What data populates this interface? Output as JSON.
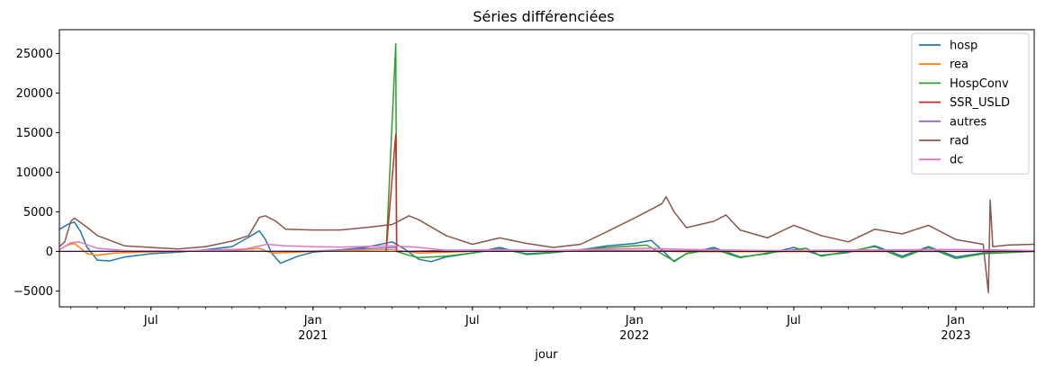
{
  "chart_data": {
    "type": "line",
    "title": "Séries différenciées",
    "xlabel": "jour",
    "ylabel": "",
    "xlim": [
      "2020-03-19",
      "2023-03-31"
    ],
    "ylim": [
      -7000,
      28000
    ],
    "yticks": [
      -5000,
      0,
      5000,
      10000,
      15000,
      20000,
      25000
    ],
    "ytick_labels": [
      "−5000",
      "0",
      "5000",
      "10000",
      "15000",
      "20000",
      "25000"
    ],
    "xticks": [
      {
        "date": "2020-07-01",
        "label": "Jul",
        "sublabel": ""
      },
      {
        "date": "2021-01-01",
        "label": "Jan",
        "sublabel": "2021"
      },
      {
        "date": "2021-07-01",
        "label": "Jul",
        "sublabel": ""
      },
      {
        "date": "2022-01-01",
        "label": "Jan",
        "sublabel": "2022"
      },
      {
        "date": "2022-07-01",
        "label": "Jul",
        "sublabel": ""
      },
      {
        "date": "2023-01-01",
        "label": "Jan",
        "sublabel": "2023"
      }
    ],
    "legend_position": "top-right",
    "grid": false,
    "series": [
      {
        "name": "hosp",
        "color": "#1f77b4",
        "points": [
          [
            "2020-03-19",
            2800
          ],
          [
            "2020-03-30",
            3500
          ],
          [
            "2020-04-05",
            3700
          ],
          [
            "2020-04-12",
            2500
          ],
          [
            "2020-04-19",
            600
          ],
          [
            "2020-05-01",
            -1100
          ],
          [
            "2020-05-15",
            -1200
          ],
          [
            "2020-06-01",
            -700
          ],
          [
            "2020-07-01",
            -300
          ],
          [
            "2020-08-01",
            -100
          ],
          [
            "2020-09-01",
            200
          ],
          [
            "2020-10-01",
            600
          ],
          [
            "2020-10-20",
            1800
          ],
          [
            "2020-11-01",
            2600
          ],
          [
            "2020-11-08",
            1500
          ],
          [
            "2020-11-15",
            -200
          ],
          [
            "2020-11-25",
            -1500
          ],
          [
            "2020-12-15",
            -600
          ],
          [
            "2021-01-01",
            -100
          ],
          [
            "2021-02-01",
            200
          ],
          [
            "2021-03-01",
            500
          ],
          [
            "2021-04-01",
            1200
          ],
          [
            "2021-04-15",
            300
          ],
          [
            "2021-05-01",
            -1000
          ],
          [
            "2021-05-15",
            -1300
          ],
          [
            "2021-06-01",
            -700
          ],
          [
            "2021-07-01",
            -200
          ],
          [
            "2021-08-01",
            500
          ],
          [
            "2021-09-01",
            -400
          ],
          [
            "2021-10-01",
            -150
          ],
          [
            "2021-11-01",
            200
          ],
          [
            "2021-12-01",
            700
          ],
          [
            "2022-01-01",
            1000
          ],
          [
            "2022-01-20",
            1400
          ],
          [
            "2022-02-01",
            200
          ],
          [
            "2022-02-15",
            -1300
          ],
          [
            "2022-03-01",
            -300
          ],
          [
            "2022-04-01",
            500
          ],
          [
            "2022-05-01",
            -700
          ],
          [
            "2022-06-01",
            -300
          ],
          [
            "2022-07-01",
            500
          ],
          [
            "2022-08-01",
            -500
          ],
          [
            "2022-09-01",
            -150
          ],
          [
            "2022-10-01",
            700
          ],
          [
            "2022-11-01",
            -600
          ],
          [
            "2022-12-01",
            600
          ],
          [
            "2023-01-01",
            -700
          ],
          [
            "2023-02-01",
            -200
          ],
          [
            "2023-03-01",
            100
          ],
          [
            "2023-03-31",
            50
          ]
        ]
      },
      {
        "name": "rea",
        "color": "#ff7f0e",
        "points": [
          [
            "2020-03-19",
            200
          ],
          [
            "2020-03-28",
            800
          ],
          [
            "2020-04-05",
            1000
          ],
          [
            "2020-04-12",
            400
          ],
          [
            "2020-04-20",
            -300
          ],
          [
            "2020-05-01",
            -500
          ],
          [
            "2020-05-20",
            -200
          ],
          [
            "2020-06-15",
            -100
          ],
          [
            "2020-08-01",
            0
          ],
          [
            "2020-10-01",
            100
          ],
          [
            "2020-11-01",
            400
          ],
          [
            "2020-11-15",
            -200
          ],
          [
            "2020-12-01",
            -150
          ],
          [
            "2021-01-01",
            0
          ],
          [
            "2021-04-01",
            200
          ],
          [
            "2021-05-01",
            -200
          ],
          [
            "2021-07-01",
            0
          ],
          [
            "2022-01-01",
            100
          ],
          [
            "2022-03-01",
            -50
          ],
          [
            "2023-03-31",
            0
          ]
        ]
      },
      {
        "name": "HospConv",
        "color": "#2ca02c",
        "points": [
          [
            "2021-03-25",
            0
          ],
          [
            "2021-04-05",
            26200
          ],
          [
            "2021-04-06",
            0
          ],
          [
            "2021-04-20",
            -500
          ],
          [
            "2021-05-01",
            -800
          ],
          [
            "2021-06-01",
            -600
          ],
          [
            "2021-07-01",
            -200
          ],
          [
            "2021-08-01",
            300
          ],
          [
            "2021-09-01",
            -300
          ],
          [
            "2021-10-01",
            -100
          ],
          [
            "2021-12-01",
            500
          ],
          [
            "2022-01-15",
            800
          ],
          [
            "2022-02-15",
            -1200
          ],
          [
            "2022-03-01",
            -300
          ],
          [
            "2022-04-01",
            300
          ],
          [
            "2022-05-01",
            -800
          ],
          [
            "2022-06-01",
            -200
          ],
          [
            "2022-07-15",
            400
          ],
          [
            "2022-08-01",
            -600
          ],
          [
            "2022-10-01",
            600
          ],
          [
            "2022-11-01",
            -800
          ],
          [
            "2022-12-01",
            500
          ],
          [
            "2023-01-01",
            -900
          ],
          [
            "2023-02-01",
            -300
          ],
          [
            "2023-03-31",
            0
          ]
        ]
      },
      {
        "name": "SSR_USLD",
        "color": "#d62728",
        "points": [
          [
            "2021-03-25",
            0
          ],
          [
            "2021-04-05",
            14800
          ],
          [
            "2021-04-06",
            0
          ],
          [
            "2021-06-01",
            100
          ],
          [
            "2022-01-01",
            100
          ],
          [
            "2023-03-31",
            0
          ]
        ]
      },
      {
        "name": "autres",
        "color": "#9467bd",
        "points": [
          [
            "2020-03-19",
            0
          ],
          [
            "2020-06-01",
            50
          ],
          [
            "2021-01-01",
            30
          ],
          [
            "2021-04-05",
            500
          ],
          [
            "2021-04-06",
            0
          ],
          [
            "2022-01-01",
            40
          ],
          [
            "2023-03-31",
            0
          ]
        ]
      },
      {
        "name": "rad",
        "color": "#8c564b",
        "points": [
          [
            "2020-03-19",
            600
          ],
          [
            "2020-03-25",
            1200
          ],
          [
            "2020-04-01",
            3800
          ],
          [
            "2020-04-05",
            4200
          ],
          [
            "2020-04-20",
            3000
          ],
          [
            "2020-05-01",
            2000
          ],
          [
            "2020-06-01",
            700
          ],
          [
            "2020-07-01",
            500
          ],
          [
            "2020-08-01",
            300
          ],
          [
            "2020-09-01",
            600
          ],
          [
            "2020-10-01",
            1300
          ],
          [
            "2020-10-20",
            2000
          ],
          [
            "2020-11-01",
            4300
          ],
          [
            "2020-11-08",
            4500
          ],
          [
            "2020-11-20",
            3800
          ],
          [
            "2020-12-01",
            2800
          ],
          [
            "2021-01-01",
            2700
          ],
          [
            "2021-02-01",
            2700
          ],
          [
            "2021-03-01",
            3000
          ],
          [
            "2021-04-01",
            3400
          ],
          [
            "2021-04-20",
            4500
          ],
          [
            "2021-05-01",
            4000
          ],
          [
            "2021-06-01",
            2000
          ],
          [
            "2021-07-01",
            900
          ],
          [
            "2021-08-01",
            1700
          ],
          [
            "2021-09-01",
            1000
          ],
          [
            "2021-10-01",
            500
          ],
          [
            "2021-11-01",
            900
          ],
          [
            "2021-12-01",
            2500
          ],
          [
            "2022-01-01",
            4200
          ],
          [
            "2022-02-01",
            6000
          ],
          [
            "2022-02-06",
            6900
          ],
          [
            "2022-02-15",
            5000
          ],
          [
            "2022-03-01",
            3000
          ],
          [
            "2022-04-01",
            3800
          ],
          [
            "2022-04-15",
            4600
          ],
          [
            "2022-05-01",
            2700
          ],
          [
            "2022-06-01",
            1700
          ],
          [
            "2022-07-01",
            3300
          ],
          [
            "2022-08-01",
            2000
          ],
          [
            "2022-09-01",
            1200
          ],
          [
            "2022-10-01",
            2800
          ],
          [
            "2022-11-01",
            2200
          ],
          [
            "2022-12-01",
            3300
          ],
          [
            "2023-01-01",
            1500
          ],
          [
            "2023-02-01",
            900
          ],
          [
            "2023-02-07",
            -5200
          ],
          [
            "2023-02-09",
            6500
          ],
          [
            "2023-02-12",
            600
          ],
          [
            "2023-03-01",
            800
          ],
          [
            "2023-03-31",
            900
          ]
        ]
      },
      {
        "name": "dc",
        "color": "#e377c2",
        "points": [
          [
            "2020-03-19",
            200
          ],
          [
            "2020-04-01",
            1100
          ],
          [
            "2020-04-10",
            1200
          ],
          [
            "2020-05-01",
            400
          ],
          [
            "2020-06-01",
            100
          ],
          [
            "2020-08-01",
            50
          ],
          [
            "2020-10-15",
            300
          ],
          [
            "2020-11-10",
            900
          ],
          [
            "2020-12-01",
            700
          ],
          [
            "2021-01-01",
            600
          ],
          [
            "2021-02-01",
            550
          ],
          [
            "2021-04-01",
            700
          ],
          [
            "2021-05-01",
            500
          ],
          [
            "2021-06-01",
            150
          ],
          [
            "2021-08-01",
            200
          ],
          [
            "2021-10-01",
            100
          ],
          [
            "2021-12-01",
            300
          ],
          [
            "2022-01-15",
            400
          ],
          [
            "2022-03-01",
            250
          ],
          [
            "2022-06-01",
            100
          ],
          [
            "2022-08-01",
            150
          ],
          [
            "2022-11-01",
            200
          ],
          [
            "2023-01-01",
            250
          ],
          [
            "2023-03-31",
            100
          ]
        ]
      }
    ]
  }
}
